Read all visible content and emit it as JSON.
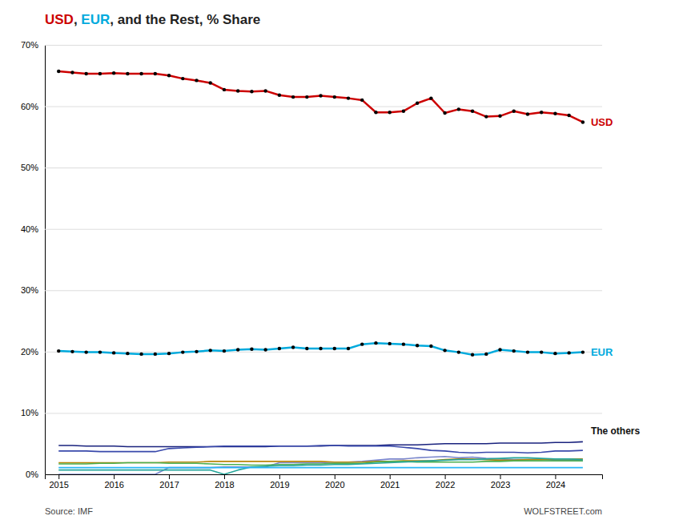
{
  "chart_data": {
    "type": "line",
    "title": "USD, EUR, and the Rest, % Share",
    "source": "Source: IMF",
    "watermark": "WOLFSTREET.com",
    "annotations": [
      "The others"
    ],
    "x": [
      2015.0,
      2015.25,
      2015.5,
      2015.75,
      2016.0,
      2016.25,
      2016.5,
      2016.75,
      2017.0,
      2017.25,
      2017.5,
      2017.75,
      2018.0,
      2018.25,
      2018.5,
      2018.75,
      2019.0,
      2019.25,
      2019.5,
      2019.75,
      2020.0,
      2020.25,
      2020.5,
      2020.75,
      2021.0,
      2021.25,
      2021.5,
      2021.75,
      2022.0,
      2022.25,
      2022.5,
      2022.75,
      2023.0,
      2023.25,
      2023.5,
      2023.75,
      2024.0,
      2024.25,
      2024.5
    ],
    "series": [
      {
        "color": "#1a237e",
        "values": [
          4.7,
          4.7,
          4.6,
          4.6,
          4.6,
          4.5,
          4.5,
          4.5,
          4.5,
          4.5,
          4.5,
          4.5,
          4.5,
          4.5,
          4.5,
          4.5,
          4.6,
          4.6,
          4.6,
          4.6,
          4.7,
          4.7,
          4.7,
          4.7,
          4.8,
          4.8,
          4.8,
          4.9,
          5.0,
          5.0,
          5.0,
          5.0,
          5.1,
          5.1,
          5.1,
          5.1,
          5.2,
          5.2,
          5.3
        ]
      },
      {
        "color": "#3949ab",
        "values": [
          3.8,
          3.8,
          3.8,
          3.7,
          3.7,
          3.7,
          3.7,
          3.7,
          4.2,
          4.3,
          4.4,
          4.5,
          4.6,
          4.6,
          4.6,
          4.6,
          4.6,
          4.6,
          4.6,
          4.7,
          4.7,
          4.6,
          4.6,
          4.6,
          4.6,
          4.4,
          4.2,
          3.9,
          3.8,
          3.6,
          3.5,
          3.6,
          3.6,
          3.6,
          3.5,
          3.6,
          3.8,
          3.8,
          3.9
        ]
      },
      {
        "color": "#7986cb",
        "values": [
          0.0,
          0.0,
          0.0,
          0.0,
          0.0,
          0.0,
          0.0,
          0.0,
          1.1,
          1.1,
          1.1,
          1.1,
          1.2,
          1.2,
          1.2,
          1.2,
          1.9,
          1.9,
          1.9,
          1.9,
          2.0,
          2.0,
          2.1,
          2.3,
          2.5,
          2.5,
          2.7,
          2.8,
          2.9,
          2.7,
          2.8,
          2.6,
          2.5,
          2.4,
          2.4,
          2.5,
          2.3,
          2.3,
          2.2
        ]
      },
      {
        "color": "#b8860b",
        "values": [
          1.9,
          1.9,
          1.9,
          1.9,
          1.9,
          1.9,
          1.9,
          1.9,
          2.0,
          2.0,
          2.0,
          2.1,
          2.1,
          2.1,
          2.1,
          2.1,
          2.1,
          2.1,
          2.1,
          2.1,
          2.0,
          2.0,
          2.0,
          2.1,
          2.1,
          2.2,
          2.2,
          2.2,
          2.4,
          2.5,
          2.5,
          2.4,
          2.3,
          2.3,
          2.4,
          2.4,
          2.5,
          2.5,
          2.5
        ]
      },
      {
        "color": "#4caf50",
        "values": [
          1.7,
          1.7,
          1.7,
          1.8,
          1.8,
          1.9,
          1.9,
          1.9,
          1.8,
          1.8,
          1.8,
          1.7,
          1.6,
          1.6,
          1.5,
          1.5,
          1.6,
          1.6,
          1.7,
          1.7,
          1.8,
          1.8,
          1.8,
          2.0,
          2.1,
          2.1,
          2.0,
          2.0,
          2.0,
          2.0,
          2.0,
          2.1,
          2.1,
          2.2,
          2.2,
          2.2,
          2.2,
          2.2,
          2.2
        ]
      },
      {
        "color": "#26a69a",
        "values": [
          0.7,
          0.7,
          0.7,
          0.7,
          0.7,
          0.7,
          0.7,
          0.7,
          0.7,
          0.7,
          0.7,
          0.7,
          0.0,
          0.7,
          1.2,
          1.3,
          1.4,
          1.4,
          1.5,
          1.5,
          1.6,
          1.6,
          1.7,
          1.8,
          1.9,
          2.0,
          2.1,
          2.2,
          2.3,
          2.4,
          2.4,
          2.5,
          2.6,
          2.7,
          2.7,
          2.6,
          2.5,
          2.5,
          2.4
        ]
      },
      {
        "color": "#29b6f6",
        "values": [
          1.1,
          1.1,
          1.1,
          1.1,
          1.1,
          1.1,
          1.1,
          1.1,
          1.1,
          1.1,
          1.1,
          1.1,
          1.1,
          1.1,
          1.1,
          1.1,
          1.1,
          1.1,
          1.1,
          1.1,
          1.1,
          1.1,
          1.1,
          1.1,
          1.1,
          1.1,
          1.1,
          1.1,
          1.1,
          1.1,
          1.1,
          1.1,
          1.1,
          1.1,
          1.1,
          1.1,
          1.1,
          1.1,
          1.1
        ]
      },
      {
        "name": "EUR",
        "color": "#00aadd",
        "marker": "dot",
        "values": [
          20.1,
          20.0,
          19.9,
          19.9,
          19.8,
          19.7,
          19.6,
          19.6,
          19.7,
          19.9,
          20.0,
          20.2,
          20.1,
          20.3,
          20.4,
          20.3,
          20.5,
          20.7,
          20.5,
          20.5,
          20.5,
          20.5,
          21.2,
          21.4,
          21.3,
          21.2,
          21.0,
          20.9,
          20.2,
          19.9,
          19.5,
          19.6,
          20.3,
          20.1,
          19.9,
          19.9,
          19.7,
          19.8,
          19.9
        ]
      },
      {
        "name": "USD",
        "color": "#cc0000",
        "marker": "dot",
        "values": [
          65.7,
          65.5,
          65.3,
          65.3,
          65.4,
          65.3,
          65.3,
          65.3,
          65.0,
          64.5,
          64.2,
          63.8,
          62.7,
          62.5,
          62.4,
          62.5,
          61.8,
          61.5,
          61.5,
          61.7,
          61.5,
          61.3,
          61.0,
          59.0,
          59.0,
          59.2,
          60.5,
          61.3,
          58.9,
          59.5,
          59.2,
          58.3,
          58.4,
          59.2,
          58.7,
          59.0,
          58.8,
          58.5,
          57.4
        ]
      }
    ],
    "xlim": [
      2014.75,
      2024.85
    ],
    "xticks": [
      2015,
      2016,
      2017,
      2018,
      2019,
      2020,
      2021,
      2022,
      2023,
      2024
    ],
    "ylim": [
      0,
      70
    ],
    "yticks": [
      {
        "value": 0,
        "label": "0%"
      },
      {
        "value": 10,
        "label": "10%"
      },
      {
        "value": 20,
        "label": "20%"
      },
      {
        "value": 30,
        "label": "30%"
      },
      {
        "value": 40,
        "label": "40%"
      },
      {
        "value": 50,
        "label": "50%"
      },
      {
        "value": 60,
        "label": "60%"
      },
      {
        "value": 70,
        "label": "70%"
      }
    ],
    "grid": true
  }
}
